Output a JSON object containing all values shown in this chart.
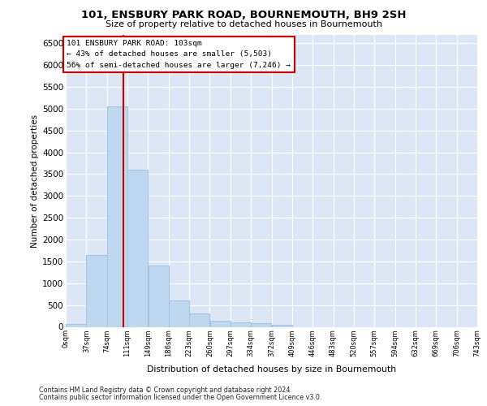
{
  "title_line1": "101, ENSBURY PARK ROAD, BOURNEMOUTH, BH9 2SH",
  "title_line2": "Size of property relative to detached houses in Bournemouth",
  "xlabel": "Distribution of detached houses by size in Bournemouth",
  "ylabel": "Number of detached properties",
  "footer_line1": "Contains HM Land Registry data © Crown copyright and database right 2024.",
  "footer_line2": "Contains public sector information licensed under the Open Government Licence v3.0.",
  "annotation_line1": "101 ENSBURY PARK ROAD: 103sqm",
  "annotation_line2": "← 43% of detached houses are smaller (5,503)",
  "annotation_line3": "56% of semi-detached houses are larger (7,246) →",
  "property_sqm": 103,
  "bin_width": 37,
  "bar_color": "#bdd7ee",
  "bar_edgecolor": "#9dc3e6",
  "line_color": "#cc0000",
  "background_color": "#dce6f5",
  "grid_color": "#ffffff",
  "x_tick_labels": [
    "0sqm",
    "37sqm",
    "74sqm",
    "111sqm",
    "149sqm",
    "186sqm",
    "223sqm",
    "260sqm",
    "297sqm",
    "334sqm",
    "372sqm",
    "409sqm",
    "446sqm",
    "483sqm",
    "520sqm",
    "557sqm",
    "594sqm",
    "632sqm",
    "669sqm",
    "706sqm",
    "743sqm"
  ],
  "bin_counts": [
    70,
    1650,
    5060,
    3600,
    1400,
    610,
    300,
    145,
    110,
    75,
    50,
    0,
    0,
    0,
    0,
    0,
    0,
    0,
    0,
    0
  ],
  "ylim_max": 6700,
  "yticks": [
    0,
    500,
    1000,
    1500,
    2000,
    2500,
    3000,
    3500,
    4000,
    4500,
    5000,
    5500,
    6000,
    6500
  ]
}
